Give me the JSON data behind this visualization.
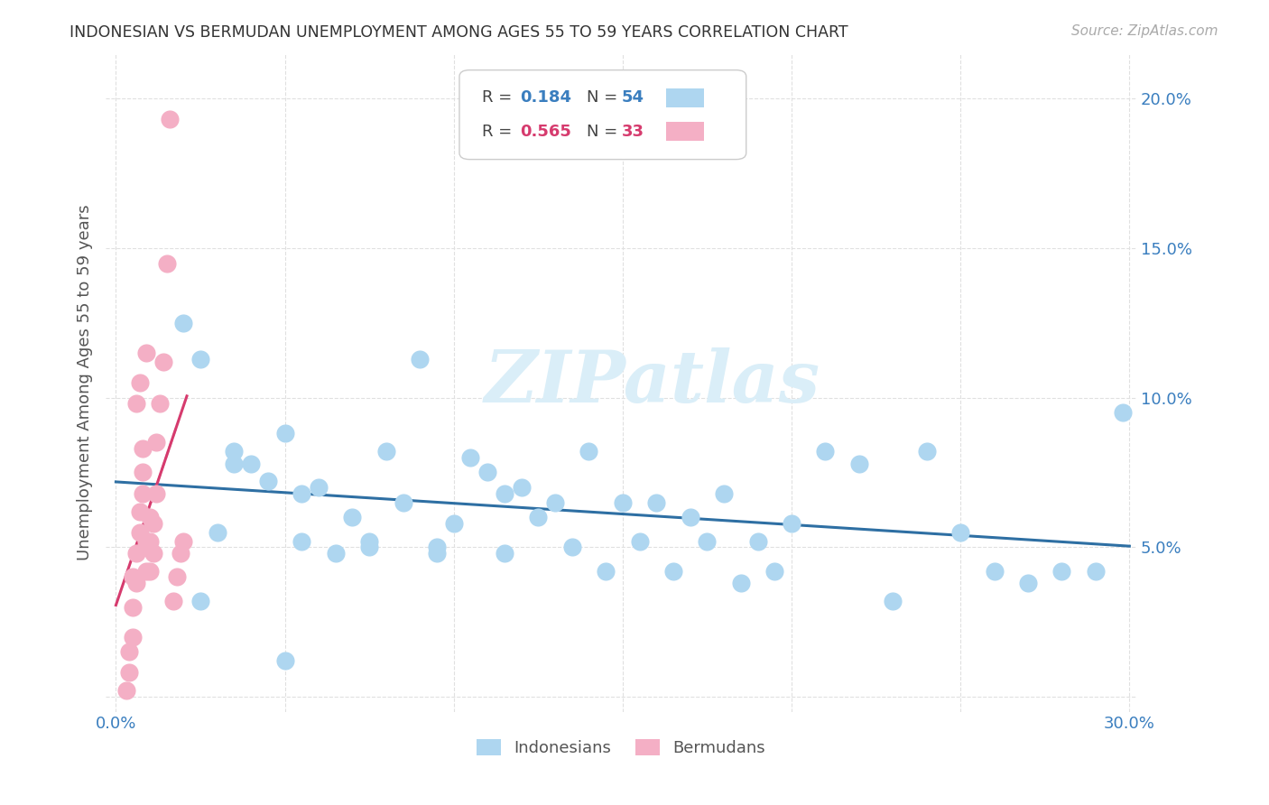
{
  "title": "INDONESIAN VS BERMUDAN UNEMPLOYMENT AMONG AGES 55 TO 59 YEARS CORRELATION CHART",
  "source": "Source: ZipAtlas.com",
  "ylabel": "Unemployment Among Ages 55 to 59 years",
  "xlim": [
    0.0,
    0.3
  ],
  "ylim": [
    0.0,
    0.21
  ],
  "xtick_positions": [
    0.0,
    0.05,
    0.1,
    0.15,
    0.2,
    0.25,
    0.3
  ],
  "ytick_positions": [
    0.0,
    0.05,
    0.1,
    0.15,
    0.2
  ],
  "legend_blue_r": "0.184",
  "legend_blue_n": "54",
  "legend_pink_r": "0.565",
  "legend_pink_n": "33",
  "legend_label_blue": "Indonesians",
  "legend_label_pink": "Bermudans",
  "blue_scatter_color": "#aed6f0",
  "pink_scatter_color": "#f4afc5",
  "blue_line_color": "#2e6fa3",
  "pink_line_color": "#d63b6e",
  "blue_text_color": "#3a7ebf",
  "pink_text_color": "#d63b6e",
  "watermark_text": "ZIPatlas",
  "watermark_color": "#daeef8",
  "indonesians_x": [
    0.02,
    0.025,
    0.03,
    0.035,
    0.04,
    0.045,
    0.05,
    0.055,
    0.06,
    0.065,
    0.07,
    0.075,
    0.08,
    0.085,
    0.09,
    0.095,
    0.1,
    0.105,
    0.11,
    0.115,
    0.12,
    0.125,
    0.13,
    0.135,
    0.14,
    0.145,
    0.15,
    0.155,
    0.16,
    0.165,
    0.17,
    0.175,
    0.18,
    0.185,
    0.19,
    0.195,
    0.2,
    0.21,
    0.22,
    0.23,
    0.24,
    0.25,
    0.26,
    0.27,
    0.28,
    0.29,
    0.298,
    0.035,
    0.055,
    0.075,
    0.095,
    0.115,
    0.025,
    0.05
  ],
  "indonesians_y": [
    0.125,
    0.113,
    0.055,
    0.082,
    0.078,
    0.072,
    0.088,
    0.052,
    0.07,
    0.048,
    0.06,
    0.052,
    0.082,
    0.065,
    0.113,
    0.048,
    0.058,
    0.08,
    0.075,
    0.068,
    0.07,
    0.06,
    0.065,
    0.05,
    0.082,
    0.042,
    0.065,
    0.052,
    0.065,
    0.042,
    0.06,
    0.052,
    0.068,
    0.038,
    0.052,
    0.042,
    0.058,
    0.082,
    0.078,
    0.032,
    0.082,
    0.055,
    0.042,
    0.038,
    0.042,
    0.042,
    0.095,
    0.078,
    0.068,
    0.05,
    0.05,
    0.048,
    0.032,
    0.012
  ],
  "bermudans_x": [
    0.003,
    0.004,
    0.004,
    0.005,
    0.005,
    0.005,
    0.006,
    0.006,
    0.007,
    0.007,
    0.008,
    0.008,
    0.008,
    0.009,
    0.009,
    0.01,
    0.01,
    0.01,
    0.011,
    0.011,
    0.012,
    0.012,
    0.013,
    0.014,
    0.015,
    0.016,
    0.017,
    0.018,
    0.019,
    0.02,
    0.006,
    0.007,
    0.009
  ],
  "bermudans_y": [
    0.002,
    0.008,
    0.015,
    0.02,
    0.03,
    0.04,
    0.038,
    0.048,
    0.055,
    0.062,
    0.068,
    0.075,
    0.083,
    0.042,
    0.052,
    0.042,
    0.052,
    0.06,
    0.048,
    0.058,
    0.068,
    0.085,
    0.098,
    0.112,
    0.145,
    0.193,
    0.032,
    0.04,
    0.048,
    0.052,
    0.098,
    0.105,
    0.115
  ]
}
